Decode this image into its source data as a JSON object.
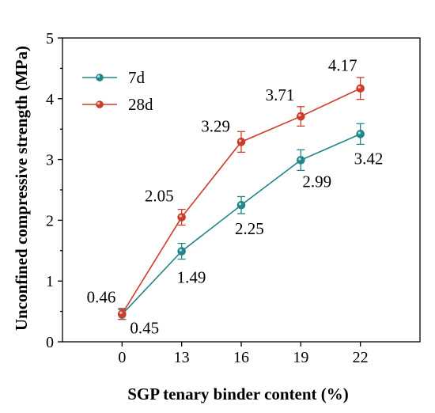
{
  "chart_data": {
    "type": "line",
    "xlabel": "SGP tenary binder content (%)",
    "ylabel": "Unconfined compressive strength (MPa)",
    "categories": [
      "0",
      "13",
      "16",
      "19",
      "22"
    ],
    "ylim": [
      0,
      5
    ],
    "yticks": [
      "0",
      "1",
      "2",
      "3",
      "4",
      "5"
    ],
    "legend_position": "top-left",
    "series": [
      {
        "name": "7d",
        "color": "#20878a",
        "values": [
          0.45,
          1.49,
          2.25,
          2.99,
          3.42
        ],
        "errors": [
          0.08,
          0.13,
          0.14,
          0.17,
          0.17
        ],
        "labels": [
          "0.45",
          "1.49",
          "2.25",
          "2.99",
          "3.42"
        ]
      },
      {
        "name": "28d",
        "color": "#cc3d2c",
        "values": [
          0.46,
          2.05,
          3.29,
          3.71,
          4.17
        ],
        "errors": [
          0.09,
          0.13,
          0.17,
          0.16,
          0.18
        ],
        "labels": [
          "0.46",
          "2.05",
          "3.29",
          "3.71",
          "4.17"
        ]
      }
    ]
  }
}
